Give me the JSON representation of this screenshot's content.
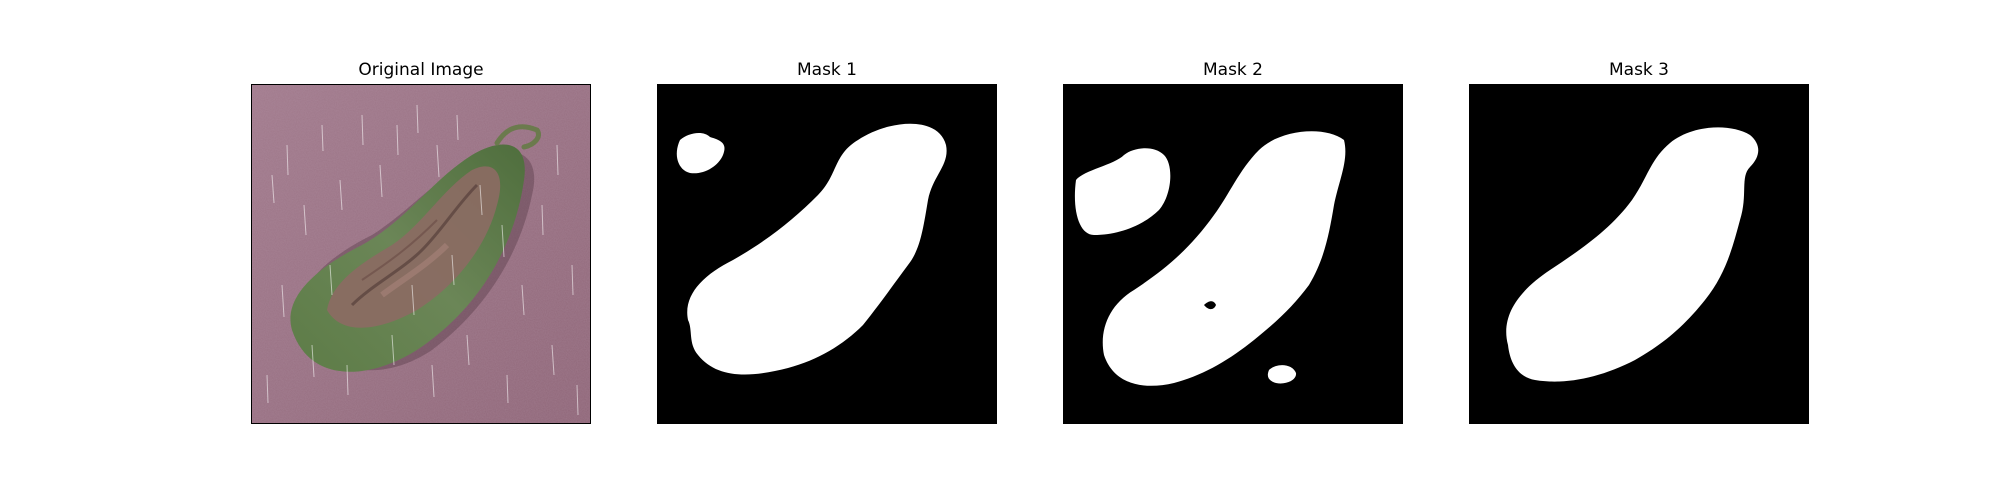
{
  "panels": [
    {
      "title": "Original Image",
      "kind": "photo",
      "subject": "leaf-on-purple-background"
    },
    {
      "title": "Mask 1",
      "kind": "mask"
    },
    {
      "title": "Mask 2",
      "kind": "mask"
    },
    {
      "title": "Mask 3",
      "kind": "mask"
    }
  ],
  "colors": {
    "background": "#9b7185",
    "leaf_green": "#5f7f4a",
    "leaf_brown": "#8a6a5e",
    "mask_bg": "#000000",
    "mask_fg": "#ffffff"
  }
}
